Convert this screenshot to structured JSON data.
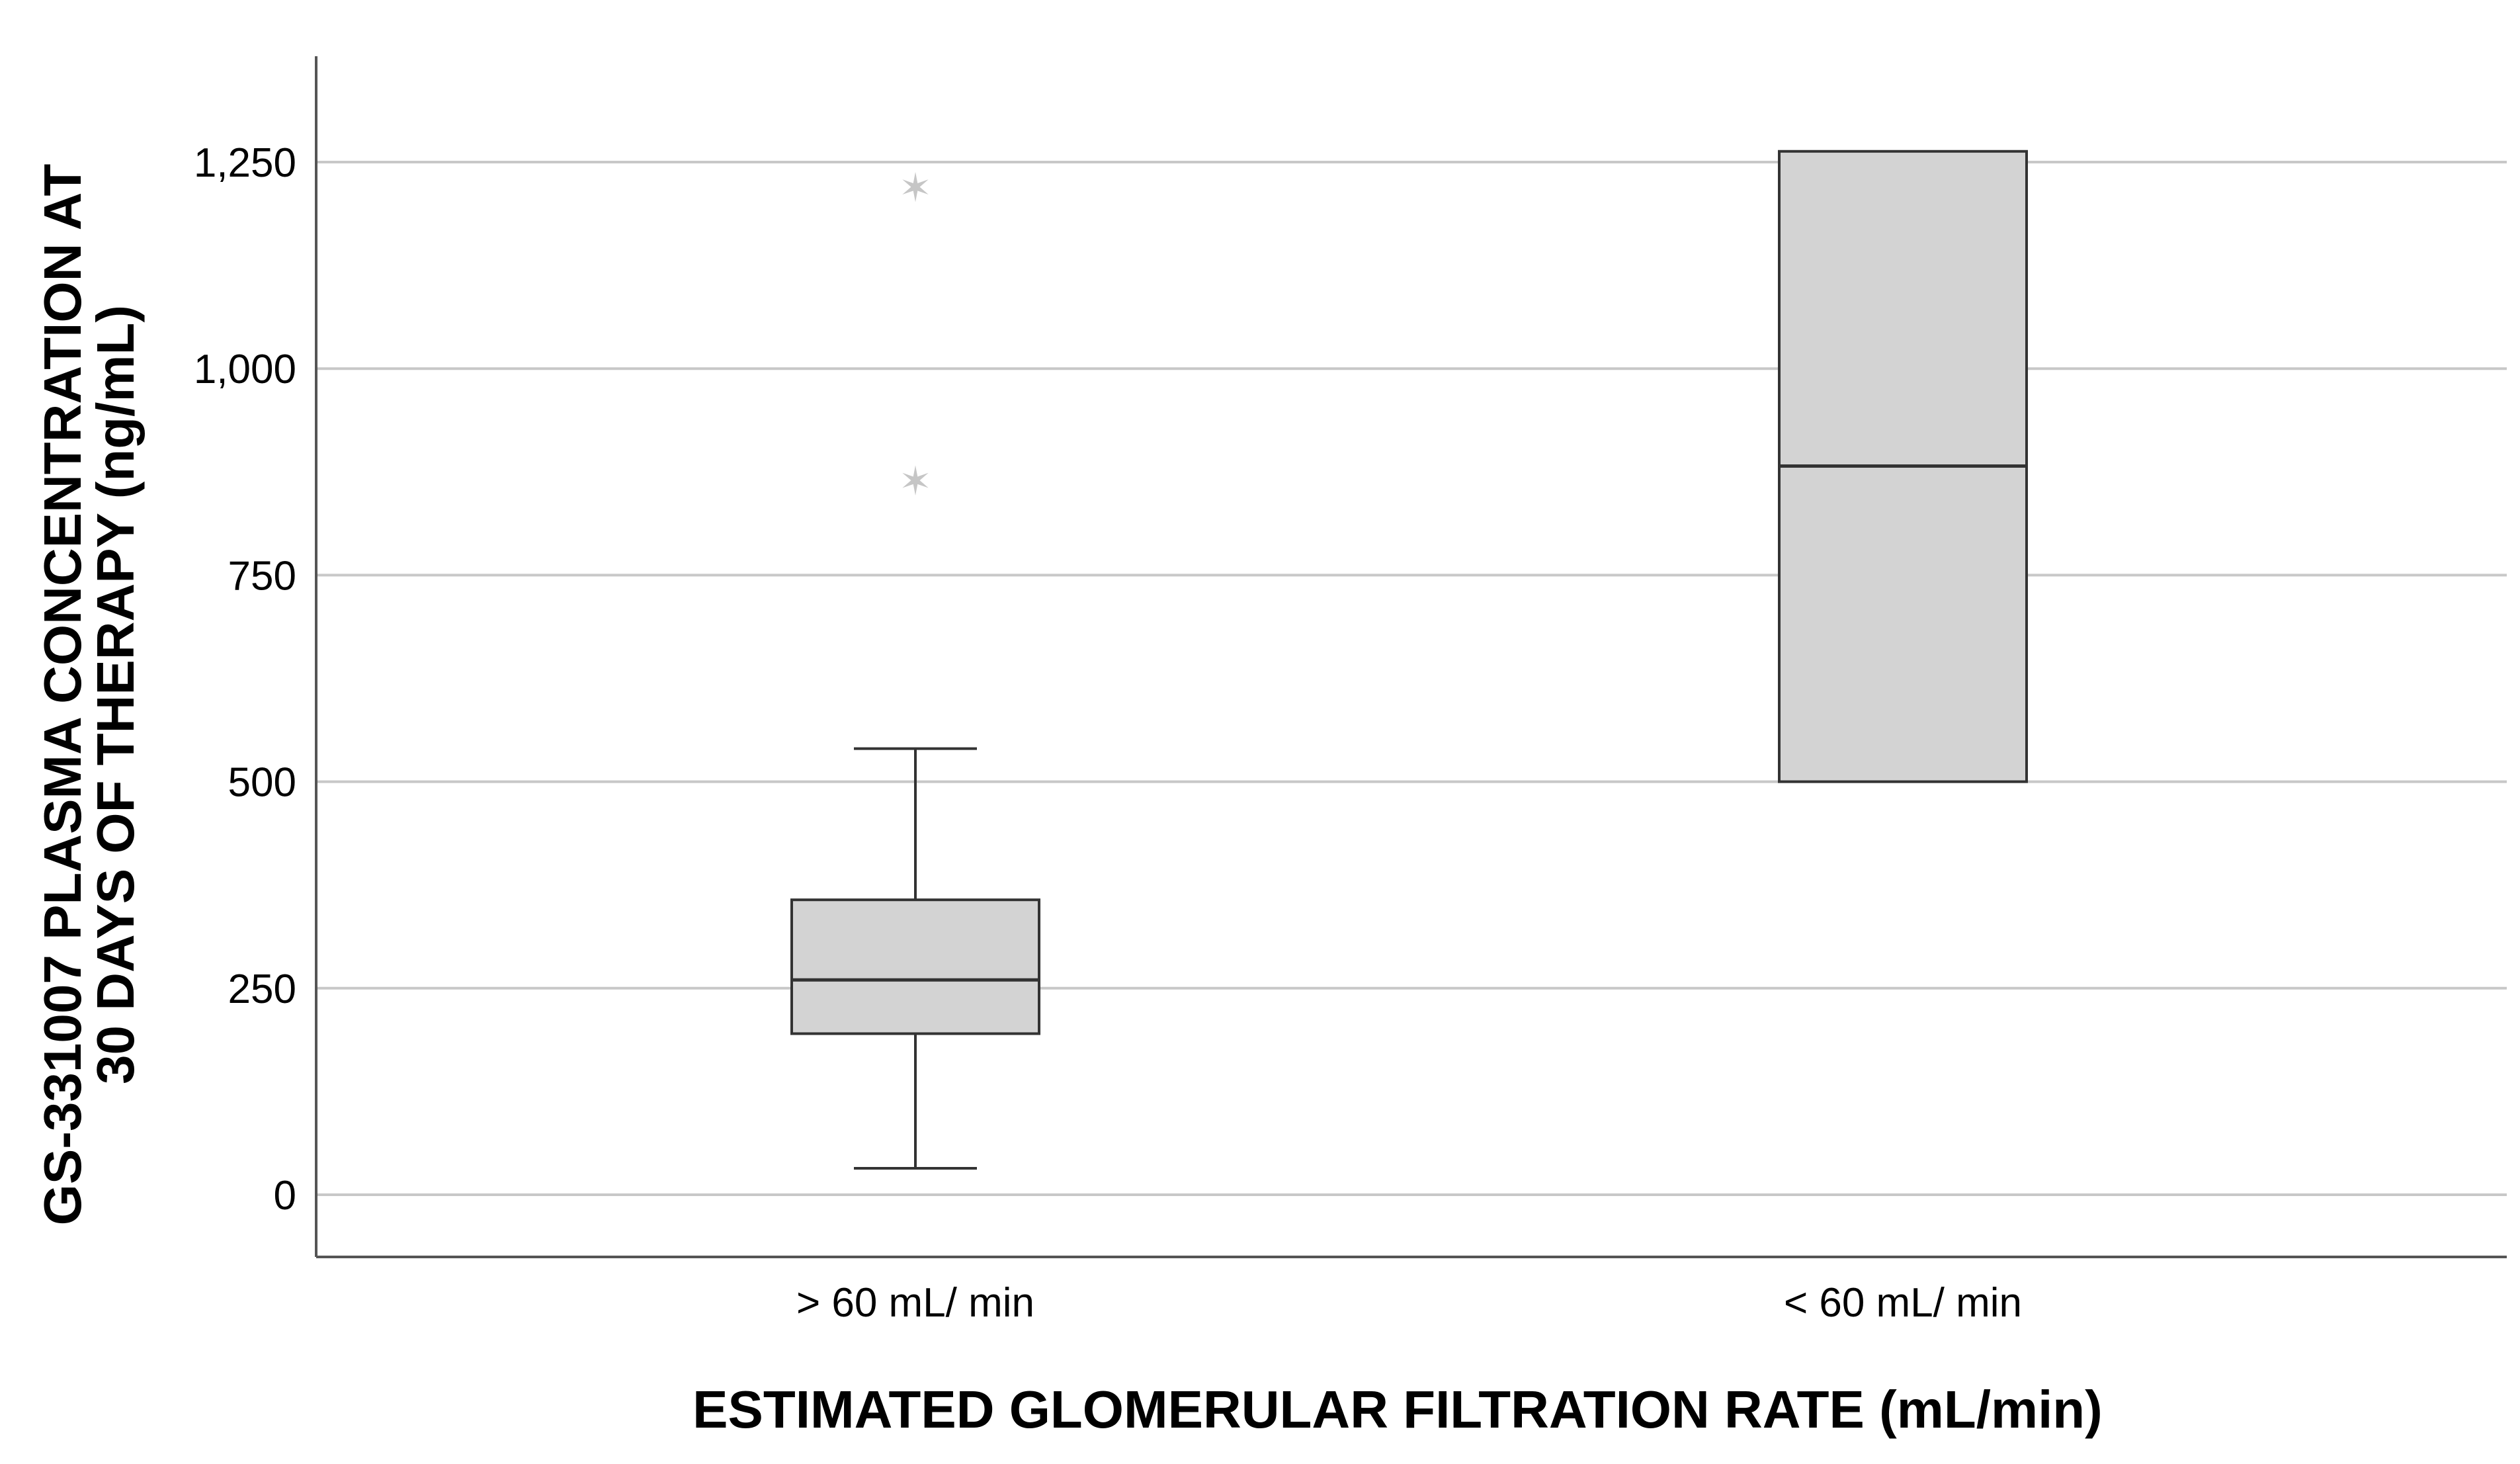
{
  "chart_data": {
    "type": "boxplot",
    "title": "",
    "xlabel": "ESTIMATED GLOMERULAR FILTRATION RATE (mL/min)",
    "ylabel_lines": [
      "GS-331007  PLASMA CONCENTRATION AT",
      "30 DAYS OF THERAPY (ng/mL)"
    ],
    "ylim": [
      -75,
      1380
    ],
    "yticks": [
      0,
      250,
      500,
      750,
      1000,
      1250
    ],
    "ytick_labels": [
      "0",
      "250",
      "500",
      "750",
      "1,000",
      "1,250"
    ],
    "grid": "horizontal",
    "categories": [
      "> 60 mL/ min",
      "< 60 mL/ min"
    ],
    "boxes": [
      {
        "category": "> 60 mL/ min",
        "whisker_low": 32,
        "q1": 195,
        "median": 260,
        "q3": 357,
        "whisker_high": 540,
        "outliers": [
          865,
          1220
        ]
      },
      {
        "category": "< 60 mL/ min",
        "whisker_low": 500,
        "q1": 500,
        "median": 882,
        "q3": 1263,
        "whisker_high": 1263,
        "outliers": []
      }
    ],
    "colors": {
      "box_fill": "#d3d3d3",
      "stroke": "#333333",
      "grid": "#c8c8c8",
      "outlier": "#c6c6c6"
    }
  }
}
